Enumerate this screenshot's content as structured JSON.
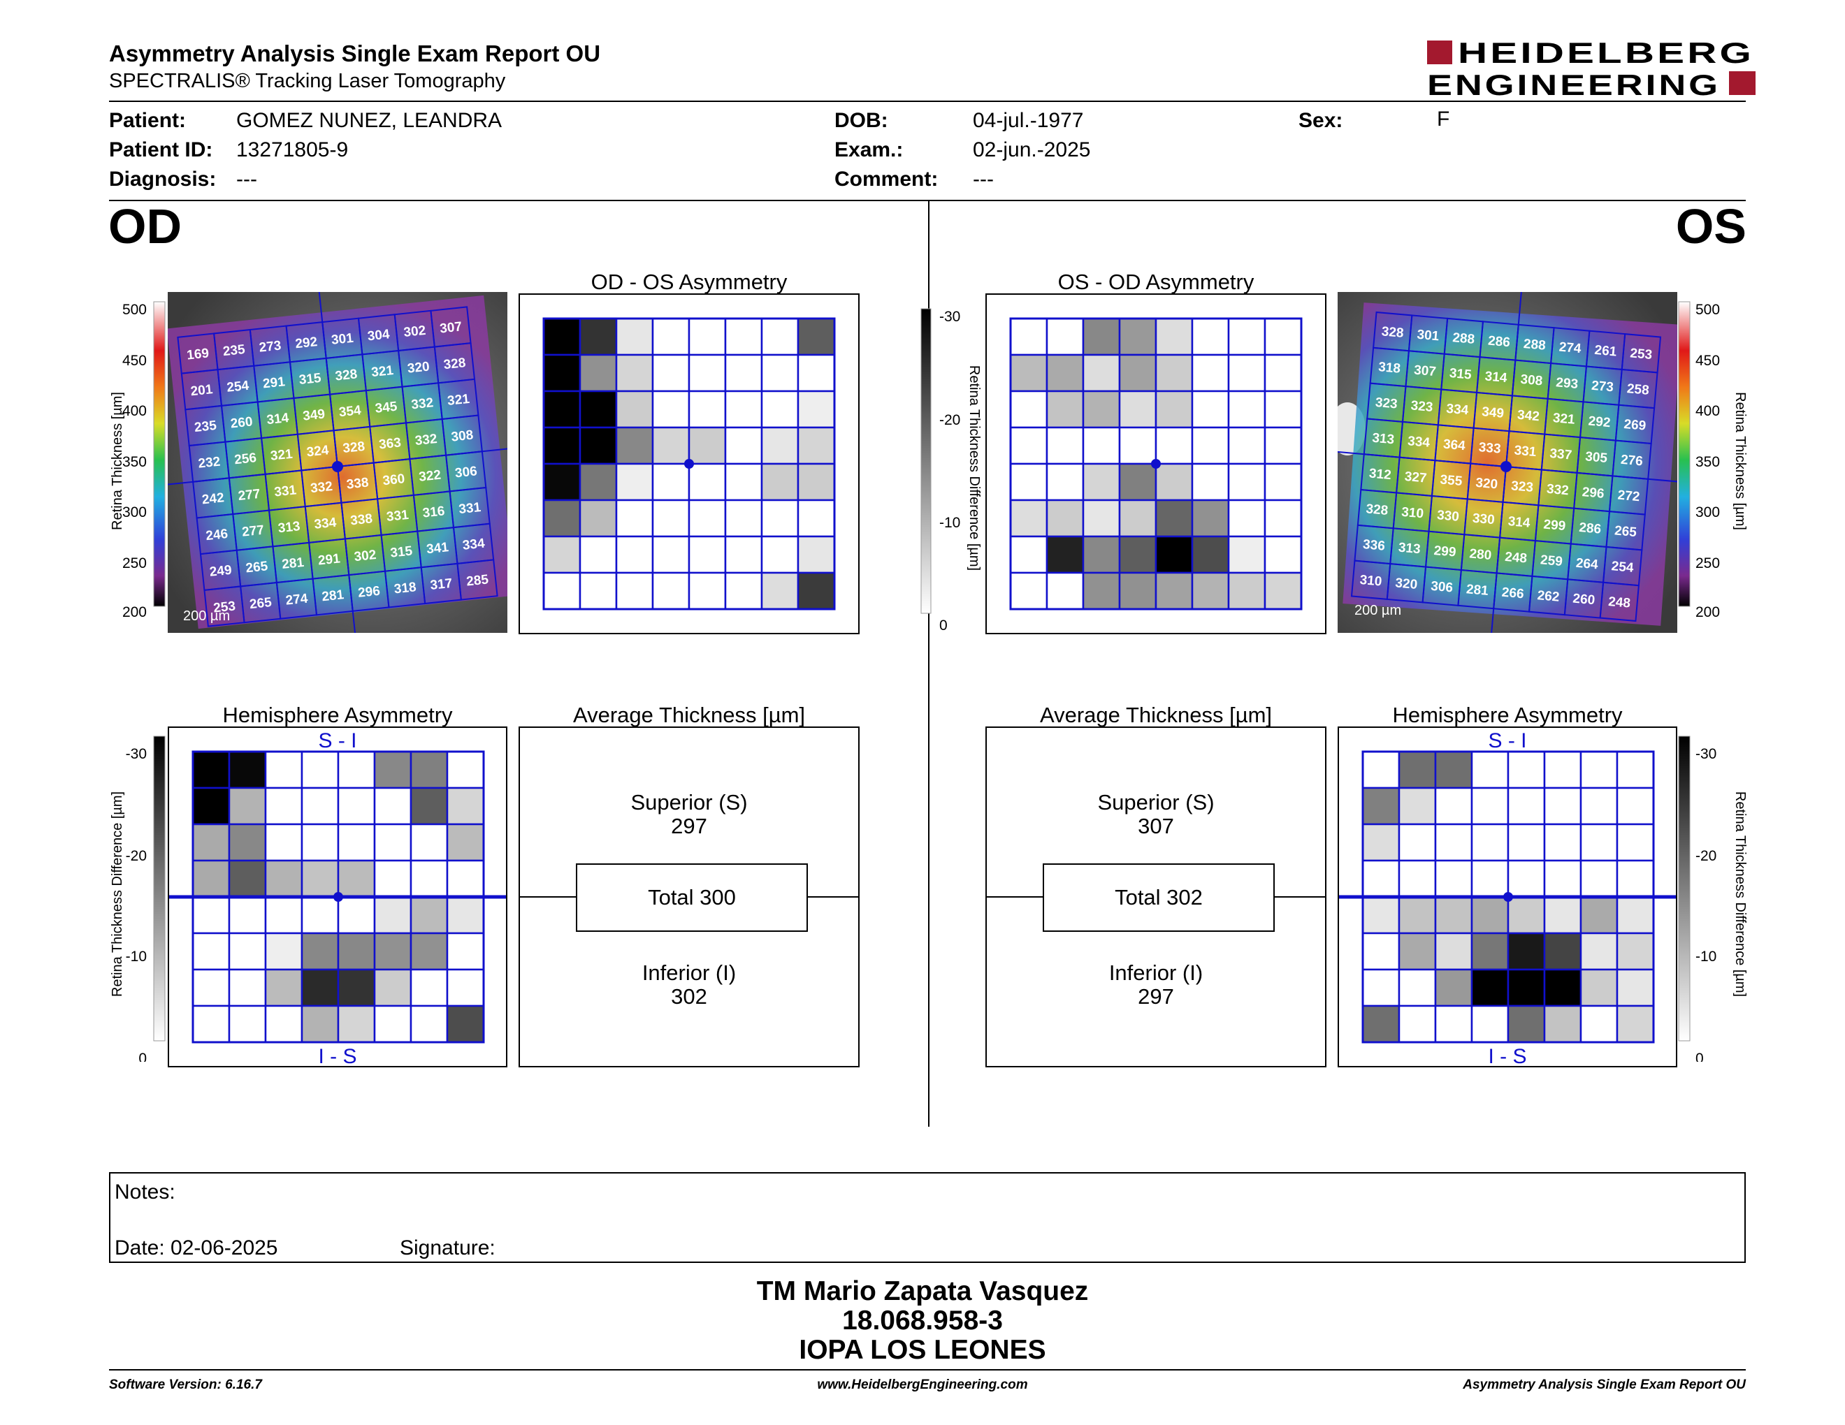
{
  "header": {
    "title": "Asymmetry Analysis Single Exam Report OU",
    "subtitle": "SPECTRALIS® Tracking Laser Tomography",
    "logo_line1": "HEIDELBERG",
    "logo_line2": "ENGINEERING",
    "logo_color": "#a3192e"
  },
  "patient": {
    "patient_label": "Patient:",
    "patient_value": "GOMEZ NUNEZ, LEANDRA",
    "id_label": "Patient ID:",
    "id_value": "13271805-9",
    "diagnosis_label": "Diagnosis:",
    "diagnosis_value": "---",
    "dob_label": "DOB:",
    "dob_value": "04-jul.-1977",
    "exam_label": "Exam.:",
    "exam_value": "02-jun.-2025",
    "comment_label": "Comment:",
    "comment_value": "---",
    "sex_label": "Sex:",
    "sex_value": "F"
  },
  "od": {
    "eye": "OD",
    "asym_title": "OD - OS Asymmetry",
    "hemi_title": "Hemisphere Asymmetry",
    "avg_title": "Average Thickness [µm]",
    "superior_label": "Superior (S)",
    "superior_value": "297",
    "total_label": "Total 300",
    "inferior_label": "Inferior (I)",
    "inferior_value": "302",
    "scale_label": "200 µm",
    "thickness": [
      [
        169,
        235,
        273,
        292,
        301,
        304,
        302,
        307
      ],
      [
        201,
        254,
        291,
        315,
        328,
        321,
        320,
        328
      ],
      [
        235,
        260,
        314,
        349,
        354,
        345,
        332,
        321
      ],
      [
        232,
        256,
        321,
        324,
        328,
        363,
        332,
        308
      ],
      [
        242,
        277,
        331,
        332,
        338,
        360,
        322,
        306
      ],
      [
        246,
        277,
        313,
        334,
        338,
        331,
        316,
        331
      ],
      [
        249,
        265,
        281,
        291,
        302,
        315,
        341,
        334
      ],
      [
        253,
        265,
        274,
        281,
        296,
        318,
        317,
        285
      ]
    ],
    "asym_grid": [
      [
        30,
        24,
        3,
        0,
        0,
        0,
        0,
        19
      ],
      [
        30,
        13,
        5,
        0,
        0,
        0,
        0,
        0
      ],
      [
        30,
        30,
        6,
        0,
        0,
        0,
        0,
        2
      ],
      [
        30,
        30,
        14,
        5,
        6,
        0,
        3,
        5
      ],
      [
        29,
        16,
        2,
        0,
        0,
        0,
        6,
        6
      ],
      [
        17,
        8,
        0,
        0,
        0,
        0,
        0,
        0
      ],
      [
        5,
        0,
        0,
        0,
        0,
        0,
        0,
        3
      ],
      [
        0,
        0,
        0,
        0,
        0,
        0,
        4,
        23
      ]
    ],
    "hemi_top": [
      [
        30,
        29,
        0,
        0,
        0,
        14,
        15,
        0
      ],
      [
        30,
        9,
        0,
        0,
        0,
        0,
        19,
        5
      ],
      [
        10,
        14,
        0,
        0,
        0,
        0,
        0,
        8
      ],
      [
        10,
        19,
        9,
        7,
        8,
        0,
        0,
        0
      ]
    ],
    "hemi_bottom": [
      [
        0,
        0,
        0,
        0,
        0,
        3,
        8,
        3
      ],
      [
        0,
        0,
        2,
        14,
        14,
        13,
        13,
        0
      ],
      [
        0,
        0,
        8,
        25,
        24,
        6,
        0,
        0
      ],
      [
        0,
        0,
        0,
        9,
        5,
        0,
        0,
        21
      ]
    ]
  },
  "os": {
    "eye": "OS",
    "asym_title": "OS - OD Asymmetry",
    "hemi_title": "Hemisphere Asymmetry",
    "avg_title": "Average Thickness [µm]",
    "superior_label": "Superior (S)",
    "superior_value": "307",
    "total_label": "Total 302",
    "inferior_label": "Inferior (I)",
    "inferior_value": "297",
    "scale_label": "200 µm",
    "thickness": [
      [
        328,
        301,
        288,
        286,
        288,
        274,
        261,
        253
      ],
      [
        318,
        307,
        315,
        314,
        308,
        293,
        273,
        258
      ],
      [
        323,
        323,
        334,
        349,
        342,
        321,
        292,
        269
      ],
      [
        313,
        334,
        364,
        333,
        331,
        337,
        305,
        276
      ],
      [
        312,
        327,
        355,
        320,
        323,
        332,
        296,
        272
      ],
      [
        328,
        310,
        330,
        330,
        314,
        299,
        286,
        265
      ],
      [
        336,
        313,
        299,
        280,
        248,
        259,
        264,
        254
      ],
      [
        310,
        320,
        306,
        281,
        266,
        262,
        260,
        248
      ]
    ],
    "asym_grid": [
      [
        0,
        0,
        14,
        12,
        4,
        0,
        0,
        0
      ],
      [
        8,
        10,
        4,
        11,
        6,
        0,
        0,
        0
      ],
      [
        0,
        7,
        9,
        4,
        6,
        0,
        0,
        0
      ],
      [
        0,
        0,
        0,
        0,
        0,
        0,
        0,
        0
      ],
      [
        0,
        0,
        5,
        15,
        6,
        0,
        0,
        0
      ],
      [
        4,
        6,
        3,
        6,
        18,
        13,
        0,
        0
      ],
      [
        0,
        26,
        14,
        19,
        30,
        21,
        2,
        0
      ],
      [
        0,
        0,
        13,
        13,
        11,
        9,
        6,
        5
      ]
    ],
    "hemi_top": [
      [
        0,
        17,
        17,
        0,
        0,
        0,
        0,
        0
      ],
      [
        15,
        4,
        0,
        0,
        0,
        0,
        0,
        0
      ],
      [
        4,
        0,
        0,
        0,
        0,
        0,
        0,
        0
      ],
      [
        0,
        0,
        0,
        0,
        0,
        0,
        0,
        0
      ]
    ],
    "hemi_bottom": [
      [
        3,
        7,
        7,
        10,
        6,
        3,
        10,
        3
      ],
      [
        0,
        10,
        4,
        16,
        27,
        22,
        3,
        5
      ],
      [
        0,
        0,
        12,
        30,
        30,
        30,
        6,
        3
      ],
      [
        17,
        0,
        0,
        0,
        17,
        7,
        0,
        5
      ]
    ]
  },
  "scales": {
    "thickness_label": "Retina Thickness [µm]",
    "thickness_ticks": [
      "500",
      "450",
      "400",
      "350",
      "300",
      "250",
      "200"
    ],
    "diff_label": "Retina Thickness Difference [µm]",
    "diff_ticks": [
      "-30",
      "-20",
      "-10",
      "0"
    ],
    "si_label": "S - I",
    "is_label": "I - S",
    "grid_color": "#1010cc"
  },
  "notes": {
    "notes_label": "Notes:",
    "date_label": "Date: 02-06-2025",
    "signature_label": "Signature:"
  },
  "signer": {
    "name": "TM Mario Zapata Vasquez",
    "id": "18.068.958-3",
    "org": "IOPA LOS LEONES"
  },
  "footer": {
    "software": "Software Version: 6.16.7",
    "url": "www.HeidelbergEngineering.com",
    "report": "Asymmetry Analysis Single Exam Report OU"
  }
}
